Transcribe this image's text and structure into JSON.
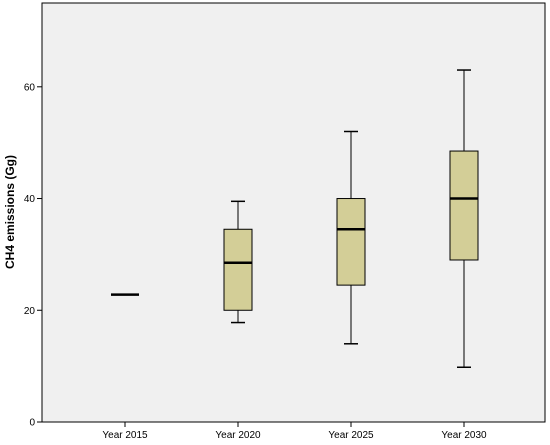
{
  "chart_data": {
    "type": "boxplot",
    "title": "",
    "xlabel": "",
    "ylabel": "CH4 emissions (Gg)",
    "ylim": [
      0,
      75
    ],
    "yticks": [
      0,
      20,
      40,
      60
    ],
    "grid": false,
    "categories": [
      "Year 2015",
      "Year 2020",
      "Year 2025",
      "Year 2030"
    ],
    "boxes": [
      {
        "min": 22.8,
        "q1": 22.8,
        "median": 22.8,
        "q3": 22.8,
        "max": 22.8
      },
      {
        "min": 17.8,
        "q1": 20.0,
        "median": 28.5,
        "q3": 34.5,
        "max": 39.5
      },
      {
        "min": 14.0,
        "q1": 24.5,
        "median": 34.5,
        "q3": 40.0,
        "max": 52.0
      },
      {
        "min": 9.8,
        "q1": 29.0,
        "median": 40.0,
        "q3": 48.5,
        "max": 63.0
      }
    ],
    "colors": {
      "plot_background": "#f0f0f0",
      "box_fill": "#d3ce97",
      "stroke": "#000000"
    }
  }
}
